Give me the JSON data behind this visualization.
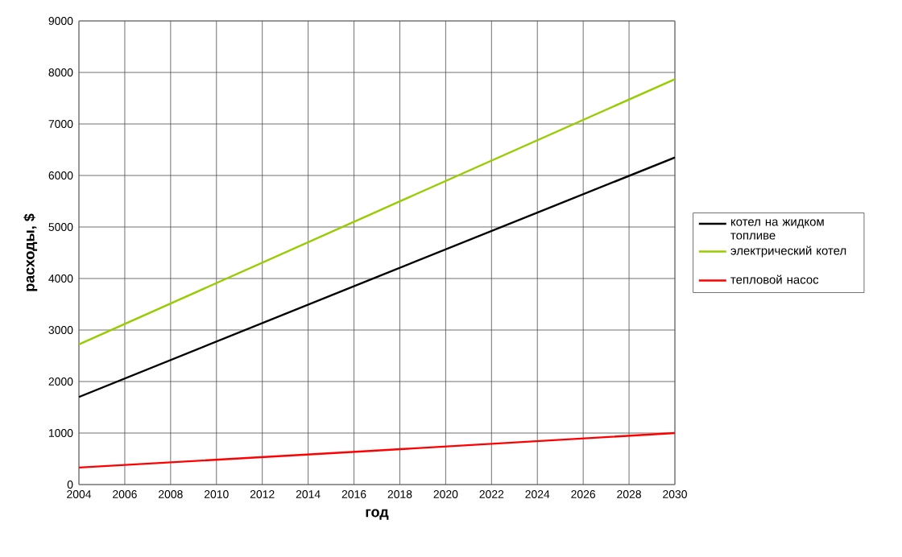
{
  "chart_data": {
    "type": "line",
    "xlabel": "год",
    "ylabel": "расходы, $",
    "x": [
      2004,
      2017,
      2030
    ],
    "series": [
      {
        "name": "котел на жидком топливе",
        "color": "#000000",
        "values": [
          1700,
          4030,
          6350
        ]
      },
      {
        "name": "электрический котел",
        "color": "#99cc00",
        "values": [
          2720,
          5300,
          7870
        ]
      },
      {
        "name": "тепловой насос",
        "color": "#ff0000",
        "values": [
          330,
          660,
          1000
        ]
      }
    ],
    "xlim": [
      2004,
      2030
    ],
    "xticks": [
      2004,
      2006,
      2008,
      2010,
      2012,
      2014,
      2016,
      2018,
      2020,
      2022,
      2024,
      2026,
      2028,
      2030
    ],
    "ylim": [
      0,
      9000
    ],
    "yticks": [
      0,
      1000,
      2000,
      3000,
      4000,
      5000,
      6000,
      7000,
      8000,
      9000
    ],
    "grid": true,
    "legend": "right",
    "marker": "none",
    "line_style": "solid"
  }
}
